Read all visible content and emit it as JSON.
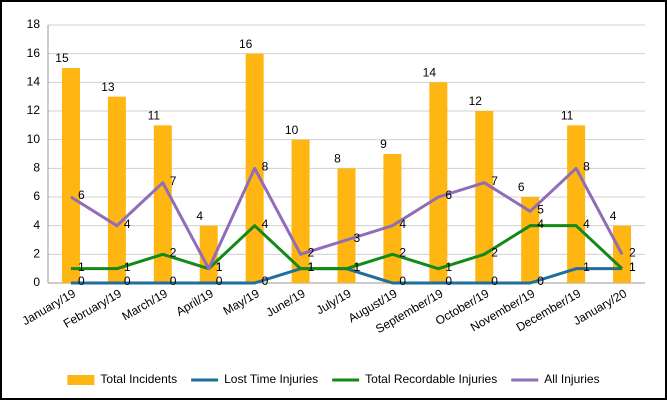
{
  "chart_data": {
    "type": "bar",
    "categories": [
      "January/19",
      "February/19",
      "March/19",
      "April/19",
      "May/19",
      "June/19",
      "July/19",
      "August/19",
      "September/19",
      "October/19",
      "November/19",
      "December/19",
      "January/20"
    ],
    "series": [
      {
        "name": "Total Incidents",
        "type": "bar",
        "color": "#ffb612",
        "values": [
          15,
          13,
          11,
          4,
          16,
          10,
          8,
          9,
          14,
          12,
          6,
          11,
          4
        ]
      },
      {
        "name": "Lost Time Injuries",
        "type": "line",
        "color": "#1f6e9c",
        "values": [
          0,
          0,
          0,
          0,
          0,
          1,
          1,
          0,
          0,
          0,
          0,
          1,
          1
        ]
      },
      {
        "name": "Total Recordable Injuries",
        "type": "line",
        "color": "#13891a",
        "values": [
          1,
          1,
          2,
          1,
          4,
          1,
          1,
          2,
          1,
          2,
          4,
          4,
          1
        ]
      },
      {
        "name": "All Injuries",
        "type": "line",
        "color": "#8f6db8",
        "values": [
          6,
          4,
          7,
          1,
          8,
          2,
          3,
          4,
          6,
          7,
          5,
          8,
          2
        ]
      }
    ],
    "ylim": [
      0,
      18
    ],
    "yticks": [
      0,
      2,
      4,
      6,
      8,
      10,
      12,
      14,
      16,
      18
    ],
    "grid": true,
    "legend": "bottom"
  }
}
